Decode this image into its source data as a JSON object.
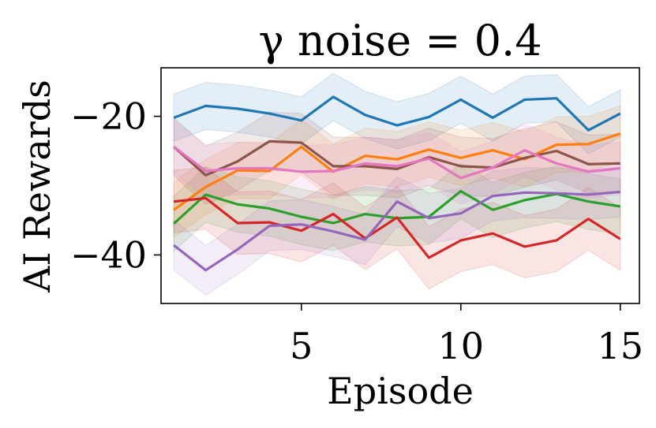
{
  "chart_data": {
    "type": "line",
    "title": "γ noise = 0.4",
    "xlabel": "Episode",
    "ylabel": "AI Rewards",
    "xlim": [
      0.6,
      15.6
    ],
    "ylim": [
      -47.0,
      -13.0
    ],
    "xticks": [
      5,
      10,
      15
    ],
    "xtick_labels": [
      "5",
      "10",
      "15"
    ],
    "yticks": [
      -20,
      -40
    ],
    "ytick_labels": [
      "−20",
      "−40"
    ],
    "grid": false,
    "legend": "none",
    "x": [
      1,
      2,
      3,
      4,
      5,
      6,
      7,
      8,
      9,
      10,
      11,
      12,
      13,
      14,
      15
    ],
    "series": [
      {
        "name": "blue",
        "color": "#1f77b4",
        "values": [
          -20.2,
          -18.5,
          -18.9,
          -19.6,
          -20.6,
          -17.2,
          -19.8,
          -21.3,
          -20.1,
          -17.6,
          -20.2,
          -17.6,
          -17.4,
          -22.0,
          -19.6
        ],
        "band": 3.4
      },
      {
        "name": "orange",
        "color": "#ff7f0e",
        "values": [
          -33.5,
          -30.2,
          -27.8,
          -27.9,
          -24.4,
          -28.0,
          -25.7,
          -26.2,
          -24.8,
          -26.0,
          -24.9,
          -26.2,
          -24.1,
          -24.0,
          -22.5
        ],
        "band": 4.0
      },
      {
        "name": "green",
        "color": "#2ca02c",
        "values": [
          -35.5,
          -31.3,
          -32.7,
          -33.3,
          -34.5,
          -35.4,
          -34.1,
          -34.7,
          -34.5,
          -30.8,
          -33.5,
          -32.1,
          -31.2,
          -32.3,
          -33.0
        ],
        "band": 4.0
      },
      {
        "name": "red",
        "color": "#d62728",
        "values": [
          -32.3,
          -31.8,
          -35.4,
          -35.3,
          -36.5,
          -34.1,
          -37.6,
          -34.6,
          -40.4,
          -37.9,
          -36.9,
          -38.8,
          -37.9,
          -34.8,
          -37.7
        ],
        "band": 4.5
      },
      {
        "name": "purple",
        "color": "#9467bd",
        "values": [
          -38.6,
          -42.2,
          -39.2,
          -35.8,
          -35.6,
          -36.6,
          -37.8,
          -32.3,
          -34.7,
          -34.0,
          -31.5,
          -31.0,
          -31.1,
          -31.3,
          -30.9
        ],
        "band": 3.6
      },
      {
        "name": "brown",
        "color": "#8c564b",
        "values": [
          -24.4,
          -28.5,
          -26.5,
          -23.6,
          -23.8,
          -27.2,
          -27.2,
          -27.6,
          -25.9,
          -27.2,
          -27.4,
          -26.0,
          -25.0,
          -26.9,
          -26.8
        ],
        "band": 4.2
      },
      {
        "name": "pink",
        "color": "#e377c2",
        "values": [
          -24.4,
          -27.9,
          -27.5,
          -27.5,
          -28.0,
          -27.9,
          -26.8,
          -27.2,
          -26.1,
          -28.9,
          -27.4,
          -24.9,
          -26.8,
          -28.0,
          -27.5
        ],
        "band": 3.8
      }
    ]
  }
}
